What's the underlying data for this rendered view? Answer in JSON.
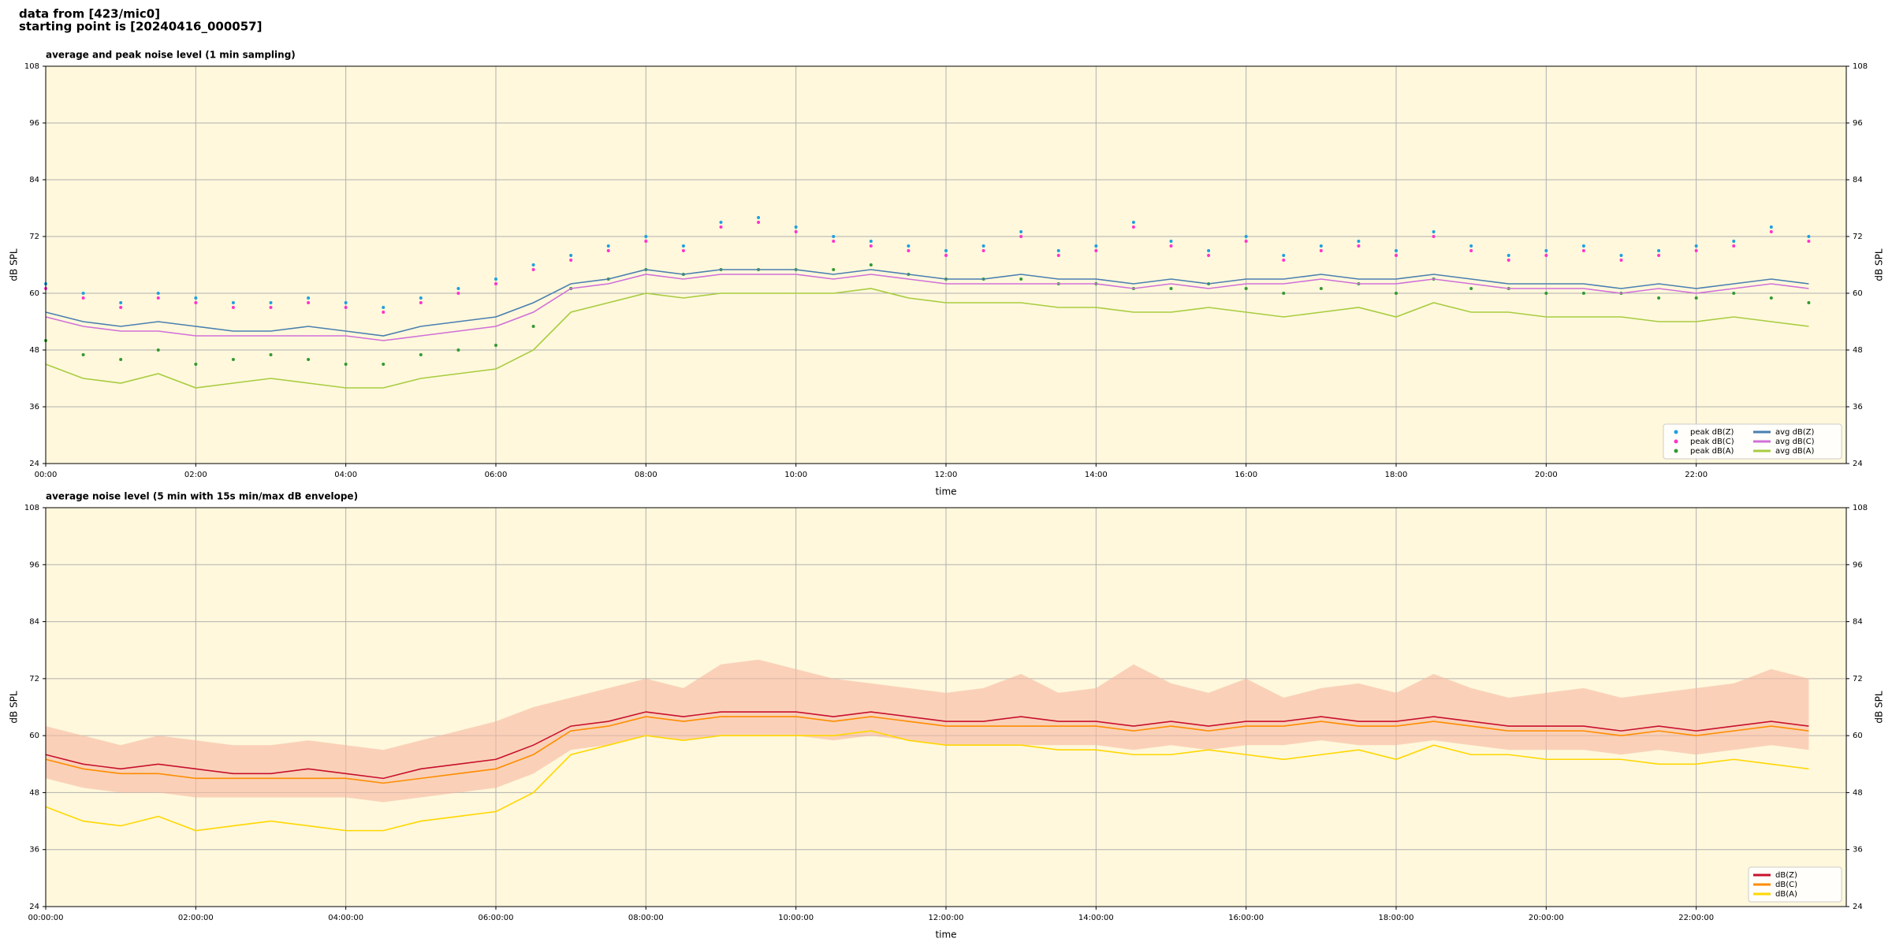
{
  "header": {
    "line1": "data from [423/mic0]",
    "line2": "starting point is [20240416_000057]"
  },
  "chart_data": [
    {
      "type": "line",
      "title": "average and peak noise level (1 min sampling)",
      "x_label": "time",
      "y_label": "dB SPL",
      "xlim": [
        0,
        24
      ],
      "ylim": [
        24,
        108
      ],
      "xticks": [
        {
          "value": 0,
          "label": "00:00"
        },
        {
          "value": 2,
          "label": "02:00"
        },
        {
          "value": 4,
          "label": "04:00"
        },
        {
          "value": 6,
          "label": "06:00"
        },
        {
          "value": 8,
          "label": "08:00"
        },
        {
          "value": 10,
          "label": "10:00"
        },
        {
          "value": 12,
          "label": "12:00"
        },
        {
          "value": 14,
          "label": "14:00"
        },
        {
          "value": 16,
          "label": "16:00"
        },
        {
          "value": 18,
          "label": "18:00"
        },
        {
          "value": 20,
          "label": "20:00"
        },
        {
          "value": 22,
          "label": "22:00"
        }
      ],
      "yticks": [
        24,
        36,
        48,
        60,
        72,
        84,
        96,
        108
      ],
      "grid": true,
      "legend": "lower right",
      "background": "#fff8dc",
      "x": [
        0,
        0.5,
        1,
        1.5,
        2,
        2.5,
        3,
        3.5,
        4,
        4.5,
        5,
        5.5,
        6,
        6.5,
        7,
        7.5,
        8,
        8.5,
        9,
        9.5,
        10,
        10.5,
        11,
        11.5,
        12,
        12.5,
        13,
        13.5,
        14,
        14.5,
        15,
        15.5,
        16,
        16.5,
        17,
        17.5,
        18,
        18.5,
        19,
        19.5,
        20,
        20.5,
        21,
        21.5,
        22,
        22.5,
        23,
        23.5
      ],
      "series": [
        {
          "name": "peak dB(Z)",
          "mark": "dot",
          "color": "#1f9fe0",
          "values": [
            62,
            60,
            58,
            60,
            59,
            58,
            58,
            59,
            58,
            57,
            59,
            61,
            63,
            66,
            68,
            70,
            72,
            70,
            75,
            76,
            74,
            72,
            71,
            70,
            69,
            70,
            73,
            69,
            70,
            75,
            71,
            69,
            72,
            68,
            70,
            71,
            69,
            73,
            70,
            68,
            69,
            70,
            68,
            69,
            70,
            71,
            74,
            72
          ]
        },
        {
          "name": "peak dB(C)",
          "mark": "dot",
          "color": "#ff33cc",
          "values": [
            61,
            59,
            57,
            59,
            58,
            57,
            57,
            58,
            57,
            56,
            58,
            60,
            62,
            65,
            67,
            69,
            71,
            69,
            74,
            75,
            73,
            71,
            70,
            69,
            68,
            69,
            72,
            68,
            69,
            74,
            70,
            68,
            71,
            67,
            69,
            70,
            68,
            72,
            69,
            67,
            68,
            69,
            67,
            68,
            69,
            70,
            73,
            71
          ]
        },
        {
          "name": "peak dB(A)",
          "mark": "dot",
          "color": "#339933",
          "values": [
            50,
            47,
            46,
            48,
            45,
            46,
            47,
            46,
            45,
            45,
            47,
            48,
            49,
            53,
            61,
            63,
            65,
            64,
            65,
            65,
            65,
            65,
            66,
            64,
            63,
            63,
            63,
            62,
            62,
            61,
            61,
            62,
            61,
            60,
            61,
            62,
            60,
            63,
            61,
            61,
            60,
            60,
            60,
            59,
            59,
            60,
            59,
            58
          ]
        },
        {
          "name": "avg dB(Z)",
          "mark": "line",
          "color": "#4a7fb0",
          "values": [
            56,
            54,
            53,
            54,
            53,
            52,
            52,
            53,
            52,
            51,
            53,
            54,
            55,
            58,
            62,
            63,
            65,
            64,
            65,
            65,
            65,
            64,
            65,
            64,
            63,
            63,
            64,
            63,
            63,
            62,
            63,
            62,
            63,
            63,
            64,
            63,
            63,
            64,
            63,
            62,
            62,
            62,
            61,
            62,
            61,
            62,
            63,
            62
          ]
        },
        {
          "name": "avg dB(C)",
          "mark": "line",
          "color": "#d070d8",
          "values": [
            55,
            53,
            52,
            52,
            51,
            51,
            51,
            51,
            51,
            50,
            51,
            52,
            53,
            56,
            61,
            62,
            64,
            63,
            64,
            64,
            64,
            63,
            64,
            63,
            62,
            62,
            62,
            62,
            62,
            61,
            62,
            61,
            62,
            62,
            63,
            62,
            62,
            63,
            62,
            61,
            61,
            61,
            60,
            61,
            60,
            61,
            62,
            61
          ]
        },
        {
          "name": "avg dB(A)",
          "mark": "line",
          "color": "#a8cc40",
          "values": [
            45,
            42,
            41,
            43,
            40,
            41,
            42,
            41,
            40,
            40,
            42,
            43,
            44,
            48,
            56,
            58,
            60,
            59,
            60,
            60,
            60,
            60,
            61,
            59,
            58,
            58,
            58,
            57,
            57,
            56,
            56,
            57,
            56,
            55,
            56,
            57,
            55,
            58,
            56,
            56,
            55,
            55,
            55,
            54,
            54,
            55,
            54,
            53
          ]
        }
      ]
    },
    {
      "type": "line",
      "title": "average noise level (5 min with 15s min/max dB envelope)",
      "x_label": "time",
      "y_label": "dB SPL",
      "xlim": [
        0,
        24
      ],
      "ylim": [
        24,
        108
      ],
      "xticks": [
        {
          "value": 0,
          "label": "00:00:00"
        },
        {
          "value": 2,
          "label": "02:00:00"
        },
        {
          "value": 4,
          "label": "04:00:00"
        },
        {
          "value": 6,
          "label": "06:00:00"
        },
        {
          "value": 8,
          "label": "08:00:00"
        },
        {
          "value": 10,
          "label": "10:00:00"
        },
        {
          "value": 12,
          "label": "12:00:00"
        },
        {
          "value": 14,
          "label": "14:00:00"
        },
        {
          "value": 16,
          "label": "16:00:00"
        },
        {
          "value": 18,
          "label": "18:00:00"
        },
        {
          "value": 20,
          "label": "20:00:00"
        },
        {
          "value": 22,
          "label": "22:00:00"
        }
      ],
      "yticks": [
        24,
        36,
        48,
        60,
        72,
        84,
        96,
        108
      ],
      "grid": true,
      "legend": "lower right",
      "background": "#fff8dc",
      "x": [
        0,
        0.5,
        1,
        1.5,
        2,
        2.5,
        3,
        3.5,
        4,
        4.5,
        5,
        5.5,
        6,
        6.5,
        7,
        7.5,
        8,
        8.5,
        9,
        9.5,
        10,
        10.5,
        11,
        11.5,
        12,
        12.5,
        13,
        13.5,
        14,
        14.5,
        15,
        15.5,
        16,
        16.5,
        17,
        17.5,
        18,
        18.5,
        19,
        19.5,
        20,
        20.5,
        21,
        21.5,
        22,
        22.5,
        23,
        23.5
      ],
      "envelope": {
        "color": "#f6b8a0",
        "min": [
          51,
          49,
          48,
          48,
          47,
          47,
          47,
          47,
          47,
          46,
          47,
          48,
          49,
          52,
          57,
          58,
          60,
          59,
          60,
          60,
          60,
          59,
          60,
          59,
          58,
          58,
          58,
          58,
          58,
          57,
          58,
          57,
          58,
          58,
          59,
          58,
          58,
          59,
          58,
          57,
          57,
          57,
          56,
          57,
          56,
          57,
          58,
          57
        ],
        "max": [
          62,
          60,
          58,
          60,
          59,
          58,
          58,
          59,
          58,
          57,
          59,
          61,
          63,
          66,
          68,
          70,
          72,
          70,
          75,
          76,
          74,
          72,
          71,
          70,
          69,
          70,
          73,
          69,
          70,
          75,
          71,
          69,
          72,
          68,
          70,
          71,
          69,
          73,
          70,
          68,
          69,
          70,
          68,
          69,
          70,
          71,
          74,
          72
        ]
      },
      "series": [
        {
          "name": "dB(Z)",
          "mark": "line",
          "color": "#c8102e",
          "values": [
            56,
            54,
            53,
            54,
            53,
            52,
            52,
            53,
            52,
            51,
            53,
            54,
            55,
            58,
            62,
            63,
            65,
            64,
            65,
            65,
            65,
            64,
            65,
            64,
            63,
            63,
            64,
            63,
            63,
            62,
            63,
            62,
            63,
            63,
            64,
            63,
            63,
            64,
            63,
            62,
            62,
            62,
            61,
            62,
            61,
            62,
            63,
            62
          ]
        },
        {
          "name": "dB(C)",
          "mark": "line",
          "color": "#ff8c00",
          "values": [
            55,
            53,
            52,
            52,
            51,
            51,
            51,
            51,
            51,
            50,
            51,
            52,
            53,
            56,
            61,
            62,
            64,
            63,
            64,
            64,
            64,
            63,
            64,
            63,
            62,
            62,
            62,
            62,
            62,
            61,
            62,
            61,
            62,
            62,
            63,
            62,
            62,
            63,
            62,
            61,
            61,
            61,
            60,
            61,
            60,
            61,
            62,
            61
          ]
        },
        {
          "name": "dB(A)",
          "mark": "line",
          "color": "#ffd700",
          "values": [
            45,
            42,
            41,
            43,
            40,
            41,
            42,
            41,
            40,
            40,
            42,
            43,
            44,
            48,
            56,
            58,
            60,
            59,
            60,
            60,
            60,
            60,
            61,
            59,
            58,
            58,
            58,
            57,
            57,
            56,
            56,
            57,
            56,
            55,
            56,
            57,
            55,
            58,
            56,
            56,
            55,
            55,
            55,
            54,
            54,
            55,
            54,
            53
          ]
        }
      ]
    }
  ]
}
